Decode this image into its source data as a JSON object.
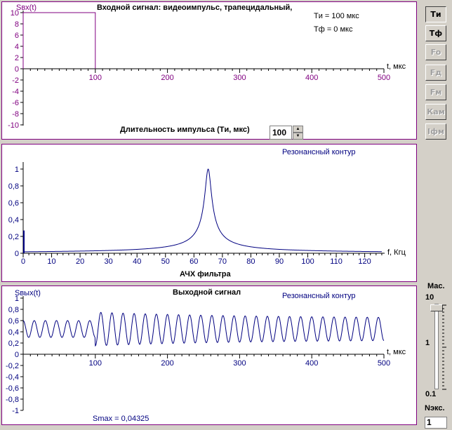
{
  "chart_data": [
    {
      "type": "line",
      "title": "Входной сигнал: видеоимпульс, трапецидальный,",
      "ylabel": "Sвх(t)",
      "xlabel": "t, мкс",
      "xlim": [
        0,
        500
      ],
      "ylim": [
        -10,
        10
      ],
      "x_ticks": [
        "100",
        "200",
        "300",
        "400",
        "500"
      ],
      "y_ticks": [
        "10",
        "8",
        "6",
        "4",
        "2",
        "0",
        "-2",
        "-4",
        "-6",
        "-8",
        "-10"
      ],
      "annotations": [
        "Tи = 100 мкс",
        "Tф = 0 мкс"
      ],
      "series": [
        {
          "x": [
            0,
            0,
            100,
            100
          ],
          "y": [
            0,
            10,
            10,
            0
          ],
          "color": "#800080"
        }
      ]
    },
    {
      "type": "line",
      "title": "Резонансный контур",
      "xlabel": "f, Кгц",
      "caption": "АЧХ фильтра",
      "xlim": [
        0,
        127
      ],
      "ylim": [
        0,
        1
      ],
      "x_ticks": [
        "0",
        "10",
        "20",
        "30",
        "40",
        "50",
        "60",
        "70",
        "80",
        "90",
        "100",
        "110",
        "120"
      ],
      "y_ticks": [
        "1",
        "0,8",
        "0,6",
        "0,4",
        "0,2",
        "0"
      ],
      "series": [
        {
          "type": "resonance",
          "f0": 65,
          "half_width": 1.15,
          "color": "#000080"
        }
      ]
    },
    {
      "type": "line",
      "title": "Выходной сигнал",
      "subtitle": "Резонансный контур",
      "ylabel": "Sвых(t)",
      "xlabel": "t, мкс",
      "xlim": [
        0,
        500
      ],
      "ylim": [
        -1,
        1
      ],
      "x_ticks": [
        "100",
        "200",
        "300",
        "400",
        "500"
      ],
      "y_ticks": [
        "1",
        "0,8",
        "0,6",
        "0,4",
        "0,2",
        "0",
        "-0,2",
        "-0,4",
        "-0,6",
        "-0,8",
        "-1"
      ],
      "annotation": "Smax = 0,04325",
      "series": [
        {
          "type": "oscillation",
          "offset": 0.45,
          "amp_before": 0.15,
          "amp_after": 0.3,
          "amp_end": 0.19,
          "step_time": 100,
          "freq_khz": 65,
          "color": "#000080"
        }
      ]
    }
  ],
  "controls": {
    "duration_label": "Длительность импульса (Tи, мкс)",
    "duration_value": "100",
    "buttons": [
      "Tи",
      "Tф",
      "Fo",
      "Fд",
      "Fм",
      "Кам",
      "Iфм"
    ],
    "scale_label": "Мас.",
    "scale_max": "10",
    "scale_mid": "1",
    "scale_min": "0.1",
    "nexp_label": "Nэкс.",
    "nexp_value": "1"
  },
  "colors": {
    "input": "#800080",
    "filter": "#000080",
    "output": "#000080",
    "frame": "#800080"
  }
}
